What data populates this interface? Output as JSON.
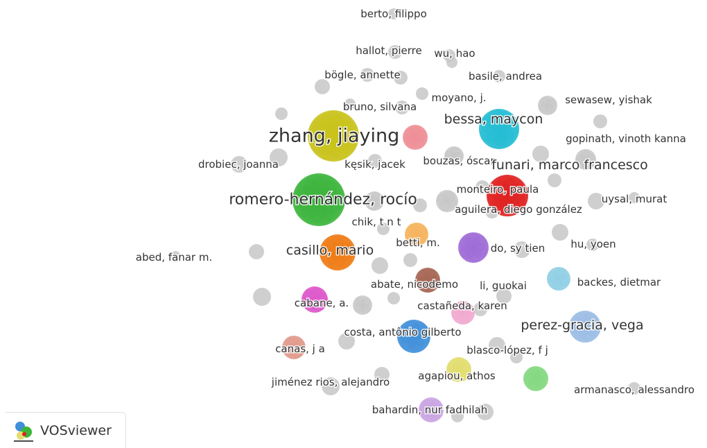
{
  "app": {
    "name": "VOSviewer",
    "logo_icon": "vosviewer-logo-icon"
  },
  "colors": {
    "gray": "#c4c4c4",
    "yellow": "#c9c21a",
    "green": "#3bb53b",
    "orange": "#ef7b13",
    "cyan": "#22bcd4",
    "red": "#e0201f",
    "pink": "#ef8d96",
    "light_orange": "#f5b25a",
    "purple": "#9e6bd6",
    "brown": "#a56552",
    "magenta": "#dd55c9",
    "light_blue": "#8fcfe4",
    "light_pink": "#f2a9cf",
    "blue": "#3f8fd9",
    "steel_blue": "#9bbde4",
    "salmon": "#e0998a",
    "khaki": "#e2de6e",
    "light_green": "#83d87f",
    "lavender": "#c9a3e2"
  },
  "nodes": [
    {
      "label": "berto, filippo",
      "color": "gray",
      "weight": 1
    },
    {
      "label": "hallot, pierre",
      "color": "gray",
      "weight": 1
    },
    {
      "label": "wu, hao",
      "color": "gray",
      "weight": 1
    },
    {
      "label": "bögle, annette",
      "color": "gray",
      "weight": 1
    },
    {
      "label": "basile, andrea",
      "color": "gray",
      "weight": 1
    },
    {
      "label": "moyano, j.",
      "color": "gray",
      "weight": 1
    },
    {
      "label": "sewasew, yishak",
      "color": "gray",
      "weight": 1
    },
    {
      "label": "bruno, silvana",
      "color": "gray",
      "weight": 1
    },
    {
      "label": "bessa, maycon",
      "color": "cyan",
      "weight": 3
    },
    {
      "label": "zhang, jiaying",
      "color": "yellow",
      "weight": 5
    },
    {
      "label": "gopinath, vinoth kanna",
      "color": "gray",
      "weight": 1
    },
    {
      "label": "drobiec, joanna",
      "color": "gray",
      "weight": 1
    },
    {
      "label": "kęsik, jacek",
      "color": "gray",
      "weight": 1
    },
    {
      "label": "bouzas, óscar",
      "color": "gray",
      "weight": 1
    },
    {
      "label": "funari, marco francesco",
      "color": "gray",
      "weight": 3
    },
    {
      "label": "monteiro, paula",
      "color": "red",
      "weight": 1
    },
    {
      "label": "romero-hernández, rocío",
      "color": "green",
      "weight": 4
    },
    {
      "label": "uysal, murat",
      "color": "gray",
      "weight": 1
    },
    {
      "label": "aguilera, diego gonzález",
      "color": "gray",
      "weight": 1
    },
    {
      "label": "chik, t n t",
      "color": "gray",
      "weight": 1
    },
    {
      "label": "betti, m.",
      "color": "light_orange",
      "weight": 1
    },
    {
      "label": "casillo, mario",
      "color": "orange",
      "weight": 3
    },
    {
      "label": "do, sy tien",
      "color": "gray",
      "weight": 1
    },
    {
      "label": "hu, yoen",
      "color": "gray",
      "weight": 1
    },
    {
      "label": "abed, fanar m.",
      "color": "gray",
      "weight": 1
    },
    {
      "label": "abate, nicodemo",
      "color": "gray",
      "weight": 1
    },
    {
      "label": "li, guokai",
      "color": "gray",
      "weight": 1
    },
    {
      "label": "backes, dietmar",
      "color": "gray",
      "weight": 1
    },
    {
      "label": "cabane, a.",
      "color": "gray",
      "weight": 1
    },
    {
      "label": "castañeda, karen",
      "color": "gray",
      "weight": 1
    },
    {
      "label": "perez-gracia, vega",
      "color": "gray",
      "weight": 2
    },
    {
      "label": "costa, antônio gilberto",
      "color": "gray",
      "weight": 1
    },
    {
      "label": "canas, j a",
      "color": "gray",
      "weight": 1
    },
    {
      "label": "blasco-lópez, f j",
      "color": "gray",
      "weight": 1
    },
    {
      "label": "agapiou, athos",
      "color": "gray",
      "weight": 1
    },
    {
      "label": "jiménez rios, alejandro",
      "color": "gray",
      "weight": 1
    },
    {
      "label": "armanasco, alessandro",
      "color": "gray",
      "weight": 1
    },
    {
      "label": "bahardin, nur fadhilah",
      "color": "gray",
      "weight": 1
    }
  ]
}
